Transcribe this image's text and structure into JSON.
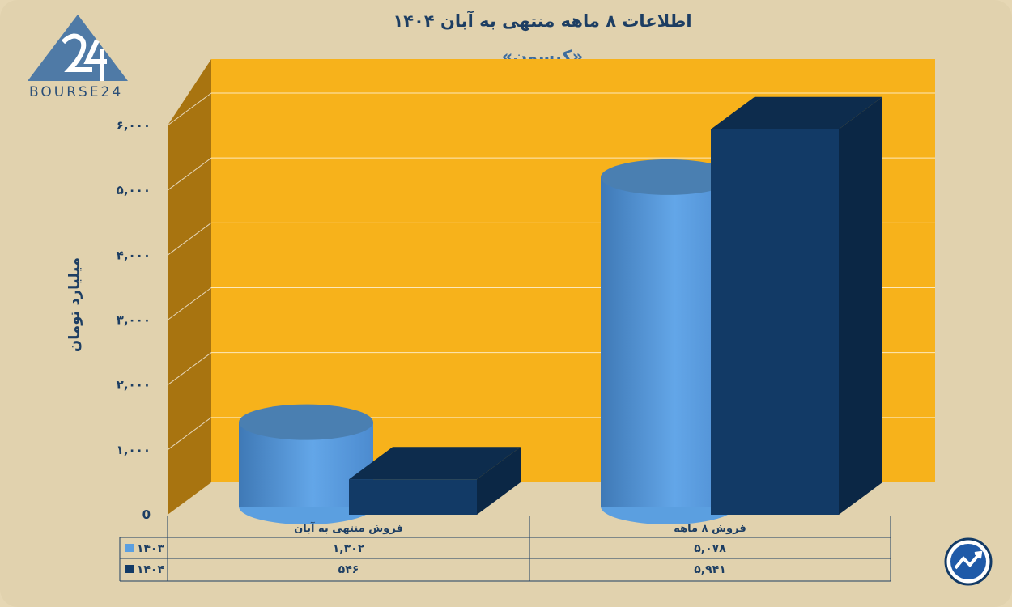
{
  "chart_data": {
    "type": "bar",
    "title": "اطلاعات ۸ ماهه منتهی به آبان ۱۴۰۴",
    "subtitle": "«کیسون»",
    "ylabel": "میلیارد تومان",
    "ylim": [
      0,
      6000
    ],
    "yticks": [
      "0",
      "۱,۰۰۰",
      "۲,۰۰۰",
      "۳,۰۰۰",
      "۴,۰۰۰",
      "۵,۰۰۰",
      "۶,۰۰۰"
    ],
    "categories": [
      "فروش منتهی به  آبان",
      "فروش ۸  ماهه"
    ],
    "series": [
      {
        "name": "۱۴۰۳",
        "values": [
          1302,
          5078
        ],
        "labels": [
          "۱,۳۰۲",
          "۵,۰۷۸"
        ],
        "color": "#5b9fe0"
      },
      {
        "name": "۱۴۰۴",
        "values": [
          546,
          5941
        ],
        "labels": [
          "۵۴۶",
          "۵,۹۴۱"
        ],
        "color": "#123a66"
      }
    ],
    "grid": true,
    "legend": "table-left"
  },
  "branding": {
    "logo_text": "BOURSE24"
  },
  "colors": {
    "background": "#e1d2ae",
    "plot": "#f7b21b",
    "wall": "#a87410"
  }
}
